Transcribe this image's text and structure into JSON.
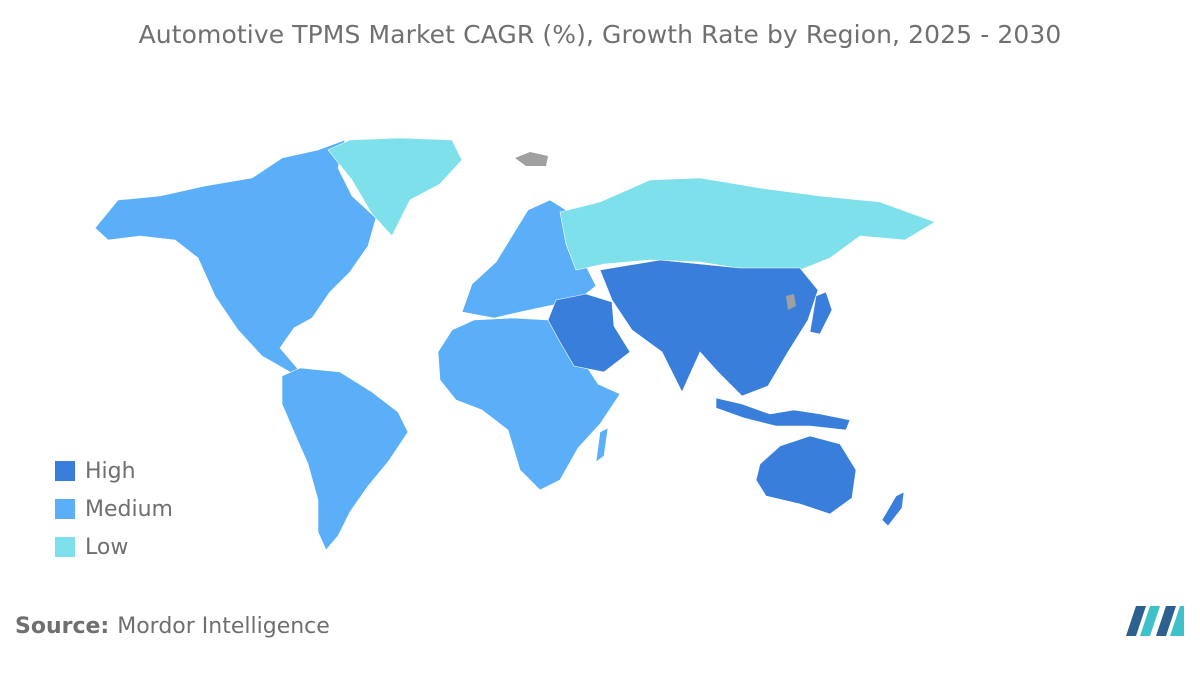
{
  "title": "Automotive TPMS Market CAGR (%), Growth Rate by Region, 2025 - 2030",
  "legend": [
    {
      "label": "High",
      "color": "#3a7edc"
    },
    {
      "label": "Medium",
      "color": "#5aaff8"
    },
    {
      "label": "Low",
      "color": "#7de0ea"
    }
  ],
  "no_data_color": "#a0a0a0",
  "source": {
    "label": "Source:",
    "value": "Mordor Intelligence"
  },
  "logo": {
    "name": "mordor-intelligence-logo",
    "colors": [
      "#2d5f8f",
      "#3fc1c9"
    ]
  },
  "regions": [
    {
      "name": "North America",
      "level": "Medium"
    },
    {
      "name": "Greenland",
      "level": "Low"
    },
    {
      "name": "South America",
      "level": "Medium"
    },
    {
      "name": "Europe",
      "level": "Medium"
    },
    {
      "name": "Africa",
      "level": "Medium"
    },
    {
      "name": "Russia",
      "level": "Low"
    },
    {
      "name": "Middle East",
      "level": "High"
    },
    {
      "name": "Asia",
      "level": "High"
    },
    {
      "name": "Australia and New Zealand",
      "level": "High"
    }
  ]
}
